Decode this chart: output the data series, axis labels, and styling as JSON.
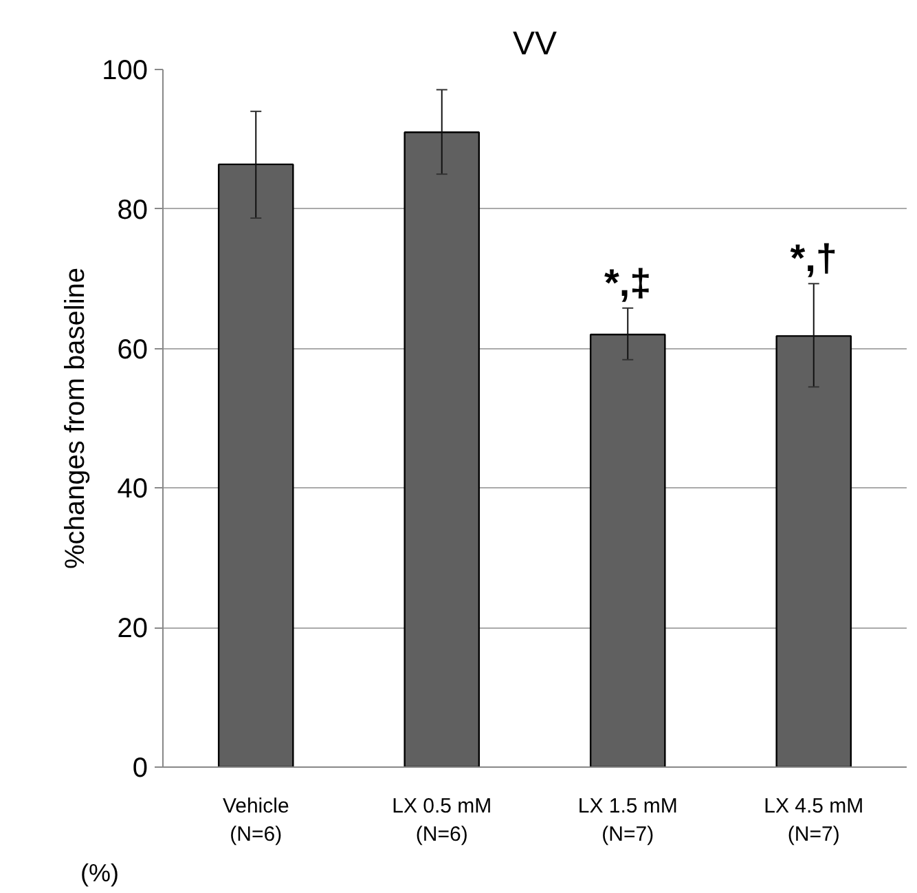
{
  "chart_data": {
    "type": "bar",
    "title": "VV",
    "ylabel": "%changes from baseline",
    "categories": [
      "Vehicle\n(N=6)",
      "LX 0.5 mM\n(N=6)",
      "LX 1.5 mM\n(N=7)",
      "LX 4.5 mM\n(N=7)"
    ],
    "values": [
      86.4,
      91.0,
      62.0,
      61.8
    ],
    "color": "#606060",
    "errors": [
      [
        78.7,
        94.0
      ],
      [
        85.0,
        97.1
      ],
      [
        58.4,
        65.8
      ],
      [
        54.5,
        69.3
      ]
    ],
    "ylim": [
      0,
      100
    ],
    "yticks": [
      0,
      20,
      40,
      60,
      80,
      100
    ],
    "grid": "y",
    "annotations": [
      "*,‡",
      "*,†",
      "(%)"
    ]
  }
}
